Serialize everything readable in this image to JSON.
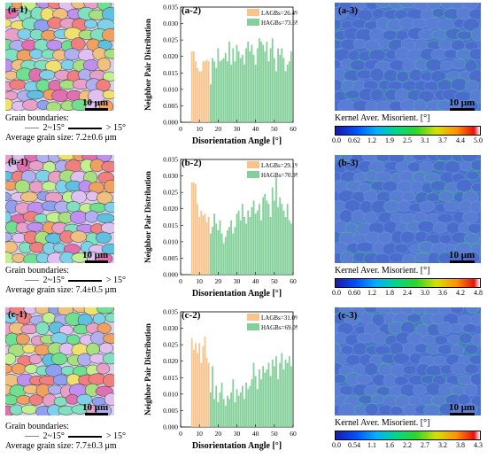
{
  "panels": [
    {
      "ebsd_label": "(a-1)",
      "scale_label": "10 μm",
      "caption": {
        "title": "Grain boundaries:",
        "low_range": "2~15°",
        "high_range": "> 15°",
        "grain_size": "Average grain size: 7.2±0.6  μm"
      },
      "chart_label": "(a-2)",
      "kam_label": "(a-3)",
      "kam_title": "Kernel Aver. Misorient. [°]",
      "kam_ticks": [
        "0.0",
        "0.62",
        "1.2",
        "1.9",
        "2.5",
        "3.1",
        "3.7",
        "4.4",
        "5.0"
      ]
    },
    {
      "ebsd_label": "(b-1)",
      "scale_label": "10 μm",
      "caption": {
        "title": "Grain boundaries:",
        "low_range": "2~15°",
        "high_range": "> 15°",
        "grain_size": "Average grain size: 7.4±0.5  μm"
      },
      "chart_label": "(b-2)",
      "kam_label": "(b-3)",
      "kam_title": "Kernel Aver. Misorient. [°]",
      "kam_ticks": [
        "0.0",
        "0.60",
        "1.2",
        "1.8",
        "2.4",
        "3.0",
        "3.6",
        "4.2",
        "4.8"
      ]
    },
    {
      "ebsd_label": "(c-1)",
      "scale_label": "10 μm",
      "caption": {
        "title": "Grain boundaries:",
        "low_range": "2~15°",
        "high_range": "> 15°",
        "grain_size": "Average grain size: 7.7±0.3  μm"
      },
      "chart_label": "(c-2)",
      "kam_label": "(c-3)",
      "kam_title": "Kernel Aver. Misorient. [°]",
      "kam_ticks": [
        "0.0",
        "0.54",
        "1.1",
        "1.6",
        "2.2",
        "2.7",
        "3.2",
        "3.8",
        "4.3"
      ]
    }
  ],
  "colors": {
    "lagb": "#f8c48c",
    "hagb": "#84d09a",
    "kam_base": "#4c72cf"
  },
  "chart_data": [
    {
      "type": "bar",
      "xlabel": "Disorientation Angle [°]",
      "ylabel": "Neighbor Pair Distribution",
      "xlim": [
        0,
        60
      ],
      "ylim": [
        0,
        0.035
      ],
      "xticks": [
        "0",
        "10",
        "20",
        "30",
        "40",
        "50",
        "60"
      ],
      "yticks": [
        "0.000",
        "0.005",
        "0.010",
        "0.015",
        "0.020",
        "0.025",
        "0.030",
        "0.035"
      ],
      "legend_position": "top-right",
      "series": [
        {
          "name": "LAGBs=26.4%",
          "color": "#f8c48c",
          "x": [
            6,
            7,
            8,
            9,
            10,
            11,
            12,
            13,
            14,
            15
          ],
          "values": [
            0.0215,
            0.0215,
            0.0185,
            0.0165,
            0.0155,
            0.0155,
            0.0185,
            0.0185,
            0.019,
            0.0185
          ]
        },
        {
          "name": "HAGBs=73.6%",
          "color": "#84d09a",
          "x": [
            16,
            17,
            18,
            19,
            20,
            21,
            22,
            23,
            24,
            25,
            26,
            27,
            28,
            29,
            30,
            31,
            32,
            33,
            34,
            35,
            36,
            37,
            38,
            39,
            40,
            41,
            42,
            43,
            44,
            45,
            46,
            47,
            48,
            49,
            50,
            51,
            52,
            53,
            54,
            55,
            56,
            57,
            58,
            59
          ],
          "values": [
            0.0115,
            0.0195,
            0.0185,
            0.0165,
            0.0225,
            0.0185,
            0.019,
            0.0195,
            0.021,
            0.0185,
            0.0245,
            0.0175,
            0.0225,
            0.0185,
            0.0235,
            0.0215,
            0.0195,
            0.0205,
            0.0175,
            0.0225,
            0.0245,
            0.0215,
            0.0235,
            0.0205,
            0.0175,
            0.0225,
            0.0255,
            0.0245,
            0.0235,
            0.0215,
            0.0245,
            0.0185,
            0.0225,
            0.0255,
            0.0195,
            0.0155,
            0.0225,
            0.0205,
            0.0225,
            0.0195,
            0.0155,
            0.0175,
            0.0185,
            0.0215
          ]
        }
      ]
    },
    {
      "type": "bar",
      "xlabel": "Disorientation Angle [°]",
      "ylabel": "Neighbor Pair Distribution",
      "xlim": [
        0,
        60
      ],
      "ylim": [
        0,
        0.035
      ],
      "xticks": [
        "0",
        "10",
        "20",
        "30",
        "40",
        "50",
        "60"
      ],
      "yticks": [
        "0.000",
        "0.005",
        "0.010",
        "0.015",
        "0.020",
        "0.025",
        "0.030",
        "0.035"
      ],
      "legend_position": "top-right",
      "series": [
        {
          "name": "LAGBs=29.1%",
          "color": "#f8c48c",
          "x": [
            6,
            7,
            8,
            9,
            10,
            11,
            12,
            13,
            14,
            15
          ],
          "values": [
            0.028,
            0.028,
            0.0275,
            0.0215,
            0.0175,
            0.0195,
            0.018,
            0.0185,
            0.016,
            0.0175
          ]
        },
        {
          "name": "HAGBs=70.9%",
          "color": "#84d09a",
          "x": [
            16,
            17,
            18,
            19,
            20,
            21,
            22,
            23,
            24,
            25,
            26,
            27,
            28,
            29,
            30,
            31,
            32,
            33,
            34,
            35,
            36,
            37,
            38,
            39,
            40,
            41,
            42,
            43,
            44,
            45,
            46,
            47,
            48,
            49,
            50,
            51,
            52,
            53,
            54,
            55,
            56,
            57,
            58,
            59
          ],
          "values": [
            0.0125,
            0.0145,
            0.0185,
            0.0155,
            0.0135,
            0.0165,
            0.0125,
            0.0095,
            0.0115,
            0.0135,
            0.0145,
            0.0165,
            0.0125,
            0.0145,
            0.0185,
            0.0195,
            0.0165,
            0.0215,
            0.0175,
            0.0155,
            0.0195,
            0.0175,
            0.0205,
            0.0225,
            0.0185,
            0.0195,
            0.0215,
            0.0165,
            0.0235,
            0.0245,
            0.0225,
            0.0215,
            0.0175,
            0.0265,
            0.0225,
            0.0295,
            0.0205,
            0.0235,
            0.0215,
            0.0195,
            0.0175,
            0.0215,
            0.0165,
            0.0155
          ]
        }
      ]
    },
    {
      "type": "bar",
      "xlabel": "Disorientation Angle [°]",
      "ylabel": "Neighbor Pair Distribution",
      "xlim": [
        0,
        60
      ],
      "ylim": [
        0,
        0.035
      ],
      "xticks": [
        "0",
        "10",
        "20",
        "30",
        "40",
        "50",
        "60"
      ],
      "yticks": [
        "0.000",
        "0.005",
        "0.010",
        "0.015",
        "0.020",
        "0.025",
        "0.030",
        "0.035"
      ],
      "legend_position": "top-right",
      "series": [
        {
          "name": "LAGBs=31.0%",
          "color": "#f8c48c",
          "x": [
            6,
            7,
            8,
            9,
            10,
            11,
            12,
            13,
            14,
            15
          ],
          "values": [
            0.027,
            0.0235,
            0.0255,
            0.0225,
            0.0255,
            0.0195,
            0.0245,
            0.0275,
            0.021,
            0.0195
          ]
        },
        {
          "name": "HAGBs=69.0%",
          "color": "#84d09a",
          "x": [
            16,
            17,
            18,
            19,
            20,
            21,
            22,
            23,
            24,
            25,
            26,
            27,
            28,
            29,
            30,
            31,
            32,
            33,
            34,
            35,
            36,
            37,
            38,
            39,
            40,
            41,
            42,
            43,
            44,
            45,
            46,
            47,
            48,
            49,
            50,
            51,
            52,
            53,
            54,
            55,
            56,
            57,
            58,
            59
          ],
          "values": [
            0.0105,
            0.0185,
            0.0085,
            0.0125,
            0.0075,
            0.0105,
            0.0135,
            0.0085,
            0.0065,
            0.0095,
            0.0085,
            0.0105,
            0.0145,
            0.0075,
            0.0115,
            0.0095,
            0.0105,
            0.0125,
            0.0085,
            0.0135,
            0.0115,
            0.0125,
            0.0145,
            0.0195,
            0.0155,
            0.0115,
            0.0175,
            0.0145,
            0.0185,
            0.0165,
            0.0175,
            0.0195,
            0.0155,
            0.0205,
            0.0185,
            0.0215,
            0.0145,
            0.0195,
            0.0225,
            0.0175,
            0.0205,
            0.0195,
            0.0215,
            0.0185
          ]
        }
      ]
    }
  ]
}
